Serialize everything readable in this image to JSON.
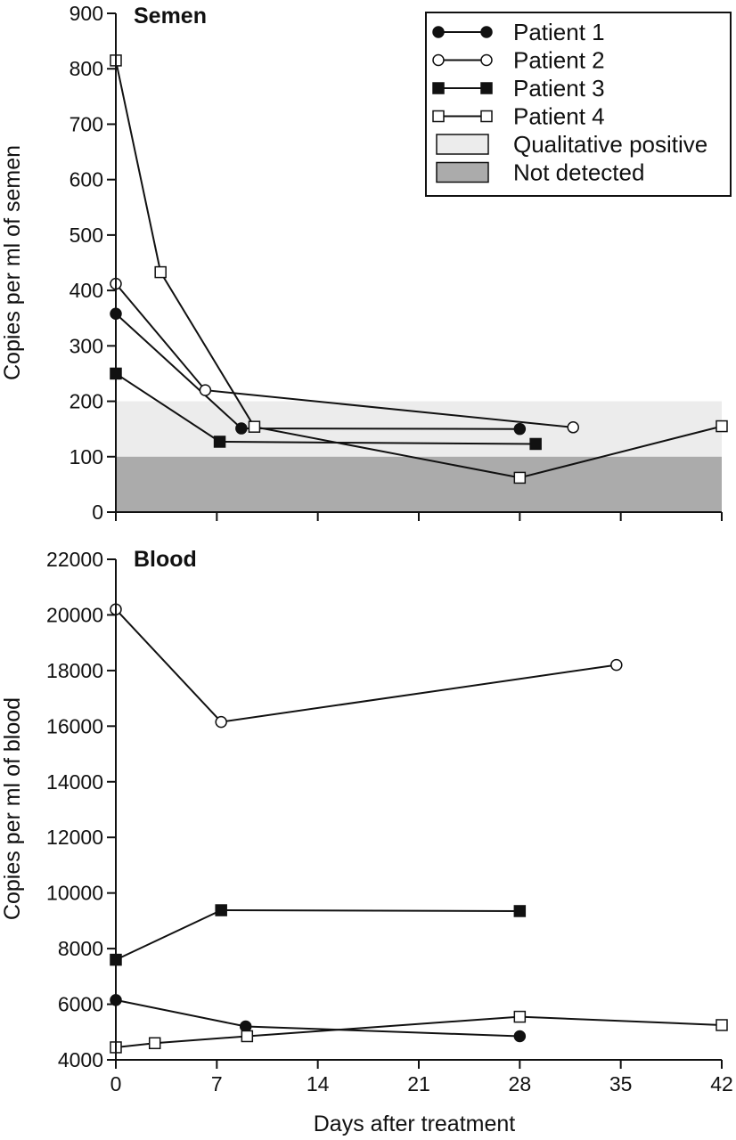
{
  "chart_data": [
    {
      "type": "line",
      "title": "Semen",
      "ylabel": "Copies per ml of semen",
      "xlabel": "",
      "xlim": [
        0,
        42
      ],
      "ylim": [
        0,
        900
      ],
      "yticks": [
        0,
        100,
        200,
        300,
        400,
        500,
        600,
        700,
        800,
        900
      ],
      "bands": [
        {
          "name": "Qualitative positive",
          "y0": 100,
          "y1": 200,
          "color": "#ececec"
        },
        {
          "name": "Not detected",
          "y0": 0,
          "y1": 100,
          "color": "#ababab"
        }
      ],
      "legend_position": "top-right",
      "series": [
        {
          "name": "Patient 1",
          "marker": "filled-circle",
          "x": [
            0,
            8.7,
            28
          ],
          "y": [
            358,
            151,
            150
          ]
        },
        {
          "name": "Patient 2",
          "marker": "open-circle",
          "x": [
            0,
            6.2,
            31.7
          ],
          "y": [
            412,
            220,
            153
          ]
        },
        {
          "name": "Patient 3",
          "marker": "filled-square",
          "x": [
            0,
            7.2,
            29.1
          ],
          "y": [
            250,
            127,
            123
          ]
        },
        {
          "name": "Patient 4",
          "marker": "open-square",
          "x": [
            0,
            3.1,
            9.6,
            28,
            42
          ],
          "y": [
            815,
            433,
            154,
            62,
            155
          ]
        }
      ]
    },
    {
      "type": "line",
      "title": "Blood",
      "ylabel": "Copies per ml of blood",
      "xlabel": "Days after treatment",
      "xlim": [
        0,
        42
      ],
      "ylim": [
        4000,
        22000
      ],
      "xticks": [
        0,
        7,
        14,
        21,
        28,
        35,
        42
      ],
      "yticks": [
        4000,
        6000,
        8000,
        10000,
        12000,
        14000,
        16000,
        18000,
        20000,
        22000
      ],
      "series": [
        {
          "name": "Patient 1",
          "marker": "filled-circle",
          "x": [
            0,
            9,
            28
          ],
          "y": [
            6150,
            5200,
            4850
          ]
        },
        {
          "name": "Patient 2",
          "marker": "open-circle",
          "x": [
            0,
            7.3,
            34.7
          ],
          "y": [
            20200,
            16150,
            18200
          ]
        },
        {
          "name": "Patient 3",
          "marker": "filled-square",
          "x": [
            0,
            7.3,
            28
          ],
          "y": [
            7600,
            9380,
            9350
          ]
        },
        {
          "name": "Patient 4",
          "marker": "open-square",
          "x": [
            0,
            2.7,
            9.1,
            28,
            42
          ],
          "y": [
            4450,
            4600,
            4850,
            5550,
            5250
          ]
        }
      ]
    }
  ]
}
